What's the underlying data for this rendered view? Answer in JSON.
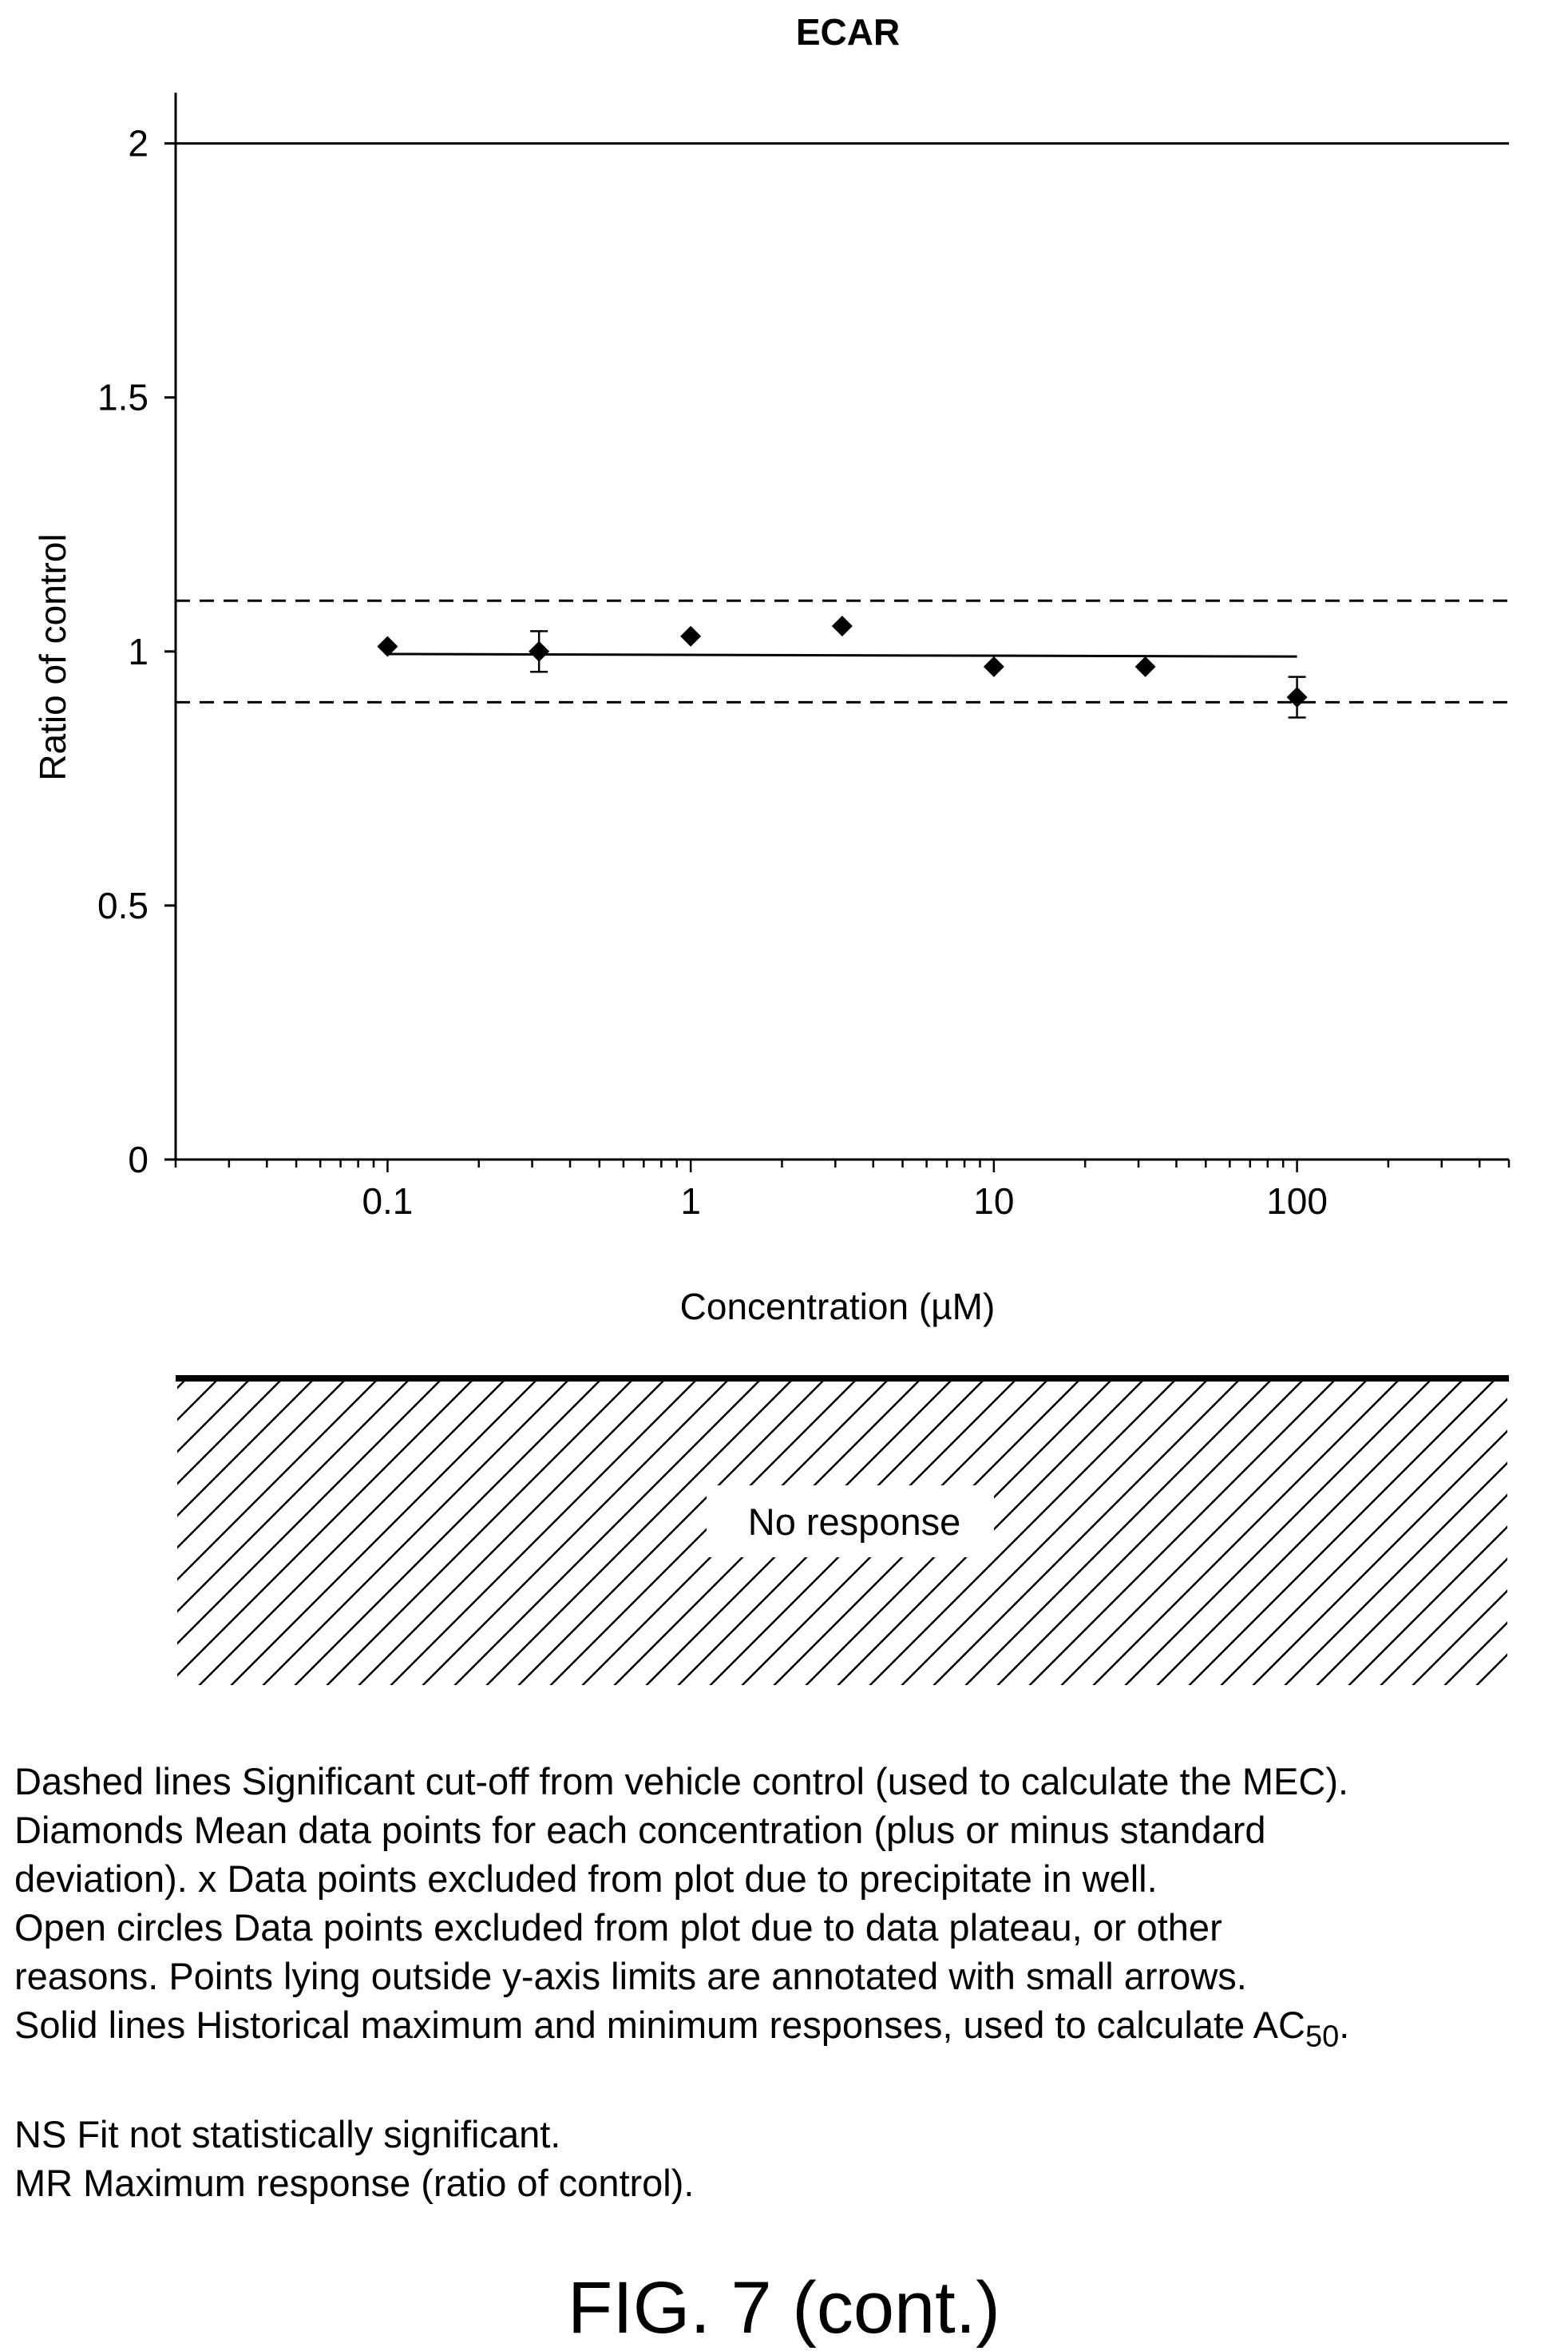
{
  "chart_data": {
    "type": "scatter",
    "title": "ECAR",
    "xlabel": "Concentration (µM)",
    "ylabel": "Ratio of control",
    "xscale": "log",
    "xlim": [
      0.02,
      500
    ],
    "ylim": [
      0,
      2.1
    ],
    "xticks": [
      {
        "value": 0.1,
        "label": "0.1"
      },
      {
        "value": 1,
        "label": "1"
      },
      {
        "value": 10,
        "label": "10"
      },
      {
        "value": 100,
        "label": "100"
      }
    ],
    "yticks": [
      {
        "value": 0,
        "label": "0"
      },
      {
        "value": 0.5,
        "label": "0.5"
      },
      {
        "value": 1,
        "label": "1"
      },
      {
        "value": 1.5,
        "label": "1.5"
      },
      {
        "value": 2,
        "label": "2"
      }
    ],
    "points": [
      {
        "x": 0.1,
        "y": 1.01,
        "err": 0.0
      },
      {
        "x": 0.316,
        "y": 1.0,
        "err": 0.04
      },
      {
        "x": 1.0,
        "y": 1.03,
        "err": 0.0
      },
      {
        "x": 3.16,
        "y": 1.05,
        "err": 0.0
      },
      {
        "x": 10,
        "y": 0.97,
        "err": 0.0
      },
      {
        "x": 31.6,
        "y": 0.97,
        "err": 0.0
      },
      {
        "x": 100,
        "y": 0.91,
        "err": 0.04
      }
    ],
    "fit_line": {
      "x": [
        0.1,
        100
      ],
      "y": [
        0.995,
        0.99
      ]
    },
    "historical_max": 2.0,
    "cutoff_upper": 1.1,
    "cutoff_lower": 0.9,
    "grid": false
  },
  "band": {
    "label": "No response"
  },
  "legend": {
    "line1": "Dashed lines Significant cut-off from vehicle control (used to calculate the MEC).",
    "line2": "Diamonds Mean data points for each concentration (plus or minus standard",
    "line3": "deviation). x Data points excluded from plot due to precipitate in well.",
    "line4": "Open circles Data points excluded from plot due to data plateau, or other",
    "line5": "reasons. Points lying outside y-axis limits are annotated with small arrows.",
    "line6_main": "Solid lines Historical maximum and minimum responses, used to calculate AC",
    "line6_sub": "50",
    "line6_end": ".",
    "line7": "NS Fit not statistically significant.",
    "line8": "MR Maximum response (ratio of control)."
  },
  "figure_label": "FIG. 7 (cont.)"
}
